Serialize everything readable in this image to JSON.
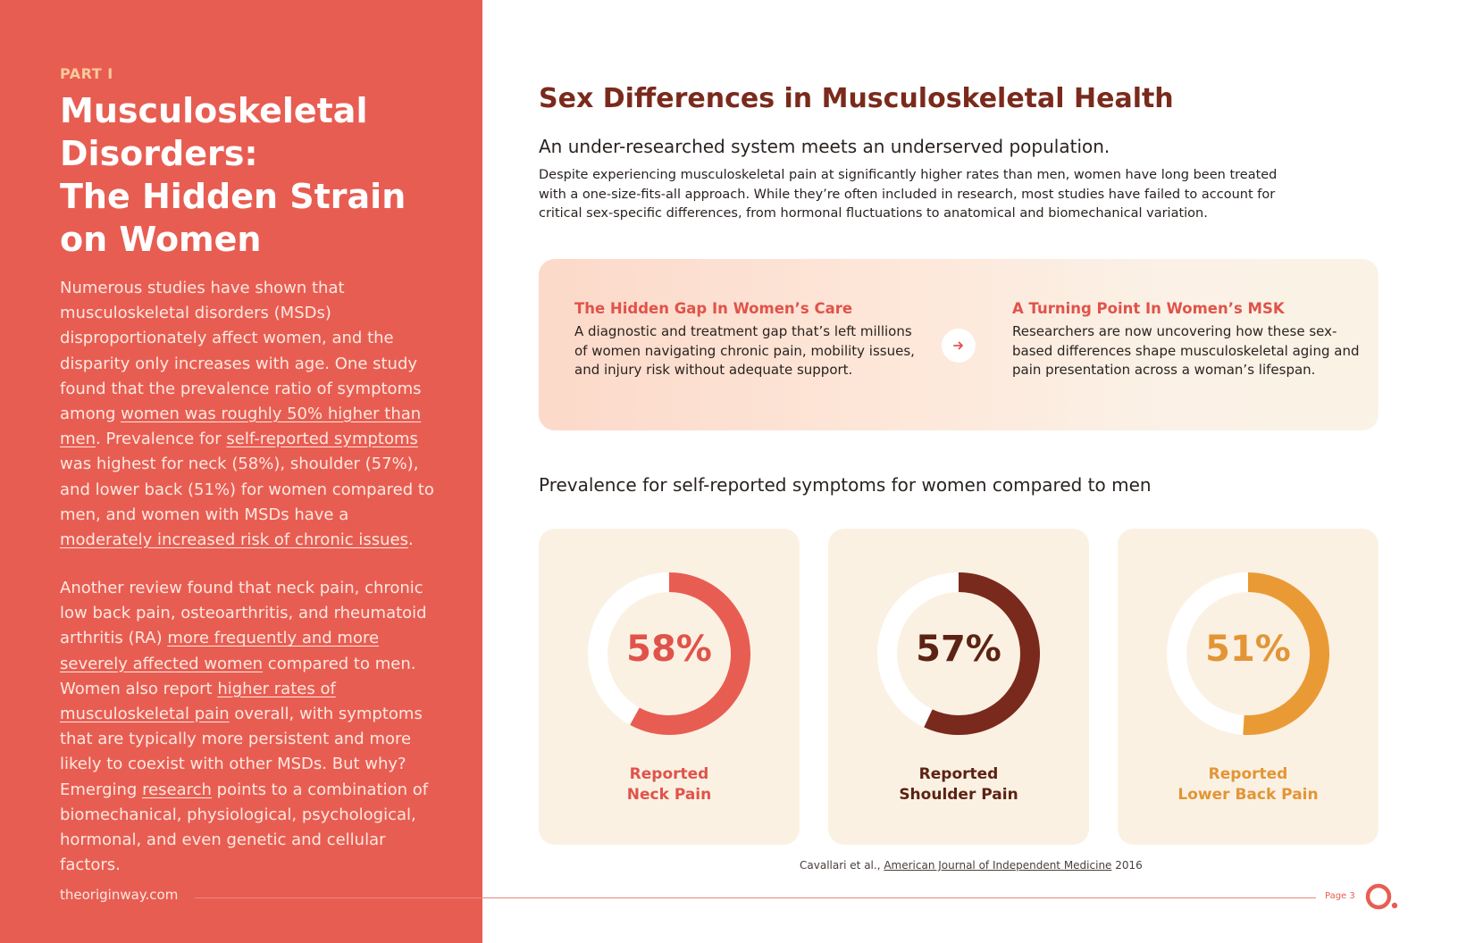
{
  "left_panel": {
    "part_label": "PART I",
    "title_lines": [
      "Musculoskeletal",
      "Disorders:",
      "The Hidden Strain",
      "on Women"
    ],
    "para1": [
      {
        "t": "Numerous studies have shown that musculoskeletal disorders (MSDs) disproportionately affect women, and the disparity only increases with age. One study found that the prevalence ratio of symptoms among "
      },
      {
        "t": "women was roughly 50% higher than men",
        "link": true
      },
      {
        "t": ". Prevalence for "
      },
      {
        "t": "self-reported symptoms",
        "link": true
      },
      {
        "t": " was highest for neck (58%), shoulder (57%), and lower back (51%) for women compared to men, and women with MSDs have a "
      },
      {
        "t": "moderately increased risk of chronic issues",
        "link": true
      },
      {
        "t": "."
      }
    ],
    "para2": [
      {
        "t": "Another review found that neck pain, chronic low back pain, osteoarthritis, and rheumatoid arthritis (RA) "
      },
      {
        "t": "more frequently and more severely affected women",
        "link": true
      },
      {
        "t": " compared to men. Women also report "
      },
      {
        "t": "higher rates of musculoskeletal pain",
        "link": true
      },
      {
        "t": " overall, with symptoms that are typically more persistent and more likely to coexist with other MSDs. But why? Emerging "
      },
      {
        "t": "research",
        "link": true
      },
      {
        "t": " points to a combination of biomechanical, physiological, psychological, hormonal, and even genetic and cellular factors."
      }
    ],
    "site": "theoriginway.com"
  },
  "main": {
    "heading": "Sex Differences in Musculoskeletal Health",
    "subheading": "An under-researched system meets an underserved population.",
    "intro": "Despite experiencing musculoskeletal pain at significantly higher rates than men, women have long been treated with a one-size-fits-all approach. While they’re often included in research, most studies have failed to account for critical sex-specific differences, from hormonal fluctuations to anatomical and biomechanical variation.",
    "banner": {
      "left_heading": "The Hidden Gap In Women’s Care",
      "left_text": "A diagnostic and treatment gap that’s left millions of women navigating chronic pain, mobility issues, and injury risk without adequate support.",
      "right_heading": "A Turning Point In Women’s MSK",
      "right_text": "Researchers are now uncovering how these sex-based differences shape musculoskeletal aging and pain presentation across a woman’s lifespan.",
      "arrow_icon": "arrow-right-icon"
    },
    "chart_heading": "Prevalence for self-reported symptoms for women compared to men",
    "citation_prefix": "Cavallari et al., ",
    "citation_link": "American Journal of Independent Medicine",
    "citation_suffix": " 2016"
  },
  "chart_data": {
    "type": "donut",
    "series": [
      {
        "name": "Reported Neck Pain",
        "label_lines": [
          "Reported",
          "Neck Pain"
        ],
        "value": 58,
        "display": "58%",
        "color": "#e85d52",
        "text_color": "#e0534a"
      },
      {
        "name": "Reported Shoulder Pain",
        "label_lines": [
          "Reported",
          "Shoulder Pain"
        ],
        "value": 57,
        "display": "57%",
        "color": "#7a2a1c",
        "text_color": "#5c2314"
      },
      {
        "name": "Reported Lower Back Pain",
        "label_lines": [
          "Reported",
          "Lower Back Pain"
        ],
        "value": 51,
        "display": "51%",
        "color": "#ea9a35",
        "text_color": "#e39536"
      }
    ],
    "max": 100
  },
  "footer": {
    "page_label": "Page 3",
    "logo_icon": "origin-logo-icon"
  },
  "colors": {
    "panel": "#e85d52",
    "heading": "#7a2a1c",
    "card_bg": "#fbf1e3"
  }
}
